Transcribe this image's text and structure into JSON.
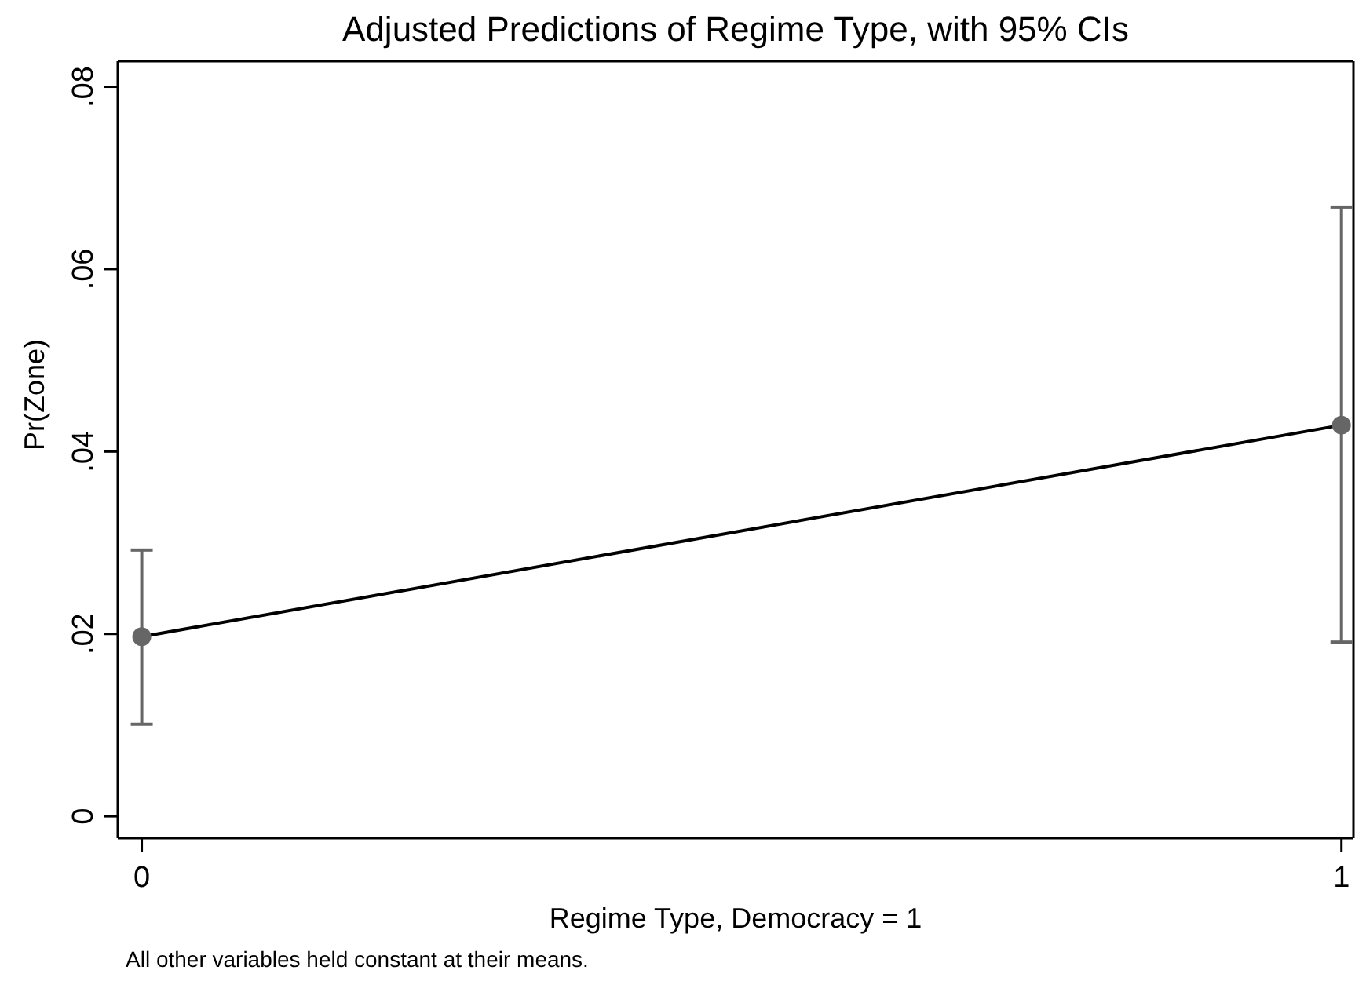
{
  "chart_data": {
    "type": "line",
    "title": "Adjusted Predictions of Regime Type, with 95% CIs",
    "xlabel": "Regime Type, Democracy = 1",
    "ylabel": "Pr(Zone)",
    "annotations": [
      "All other variables held constant at their means."
    ],
    "x": [
      0,
      1
    ],
    "xlim": [
      -0.02,
      1.01
    ],
    "xticks": [
      0,
      1
    ],
    "ylim": [
      -0.0024,
      0.0828
    ],
    "yticks": [
      {
        "value": 0,
        "label": "0"
      },
      {
        "value": 0.02,
        "label": ".02"
      },
      {
        "value": 0.04,
        "label": ".04"
      },
      {
        "value": 0.06,
        "label": ".06"
      },
      {
        "value": 0.08,
        "label": ".08"
      }
    ],
    "series": [
      {
        "color": "#000000",
        "values": [
          0.0197,
          0.0429
        ],
        "errors": [
          [
            0.0101,
            0.0292
          ],
          [
            0.0191,
            0.0668
          ]
        ]
      }
    ],
    "marker": "circle",
    "line_style": "solid",
    "grid": false
  }
}
